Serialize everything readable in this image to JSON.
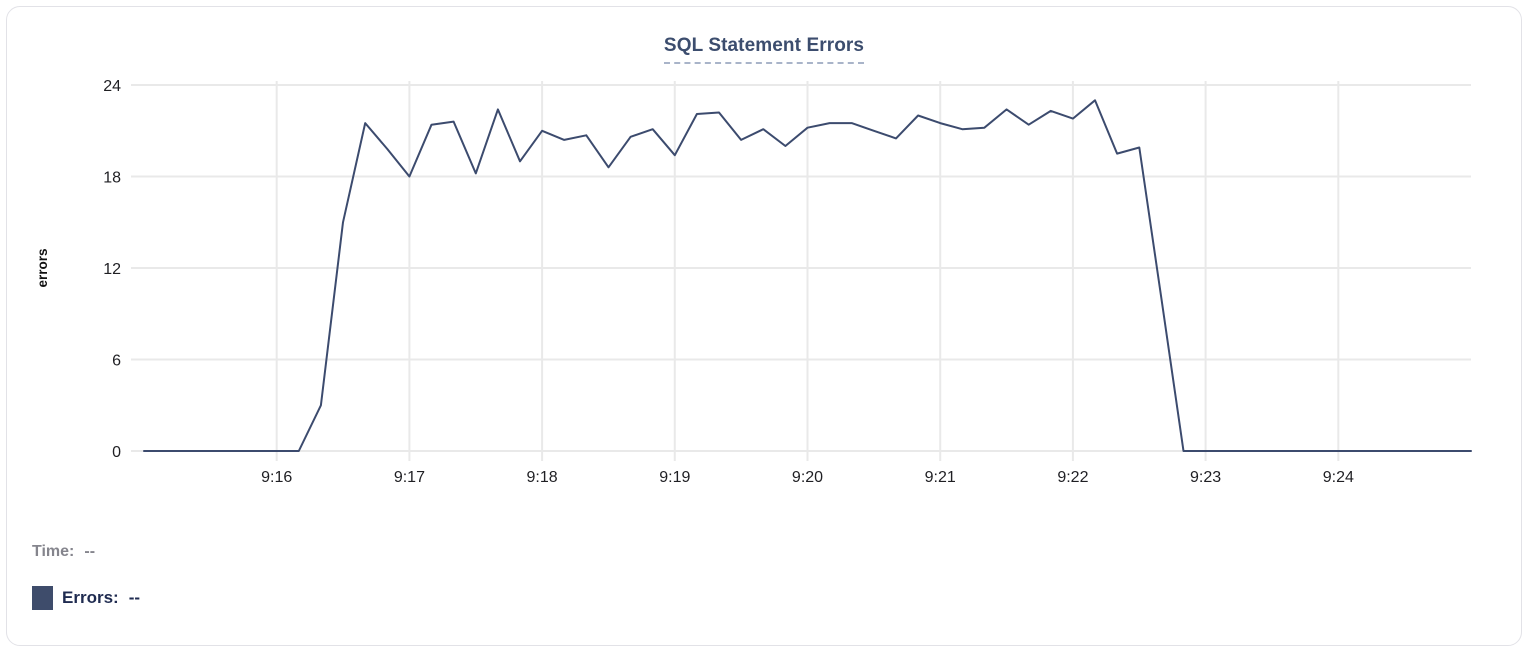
{
  "card": {
    "title": "SQL Statement Errors"
  },
  "tooltip_readout": {
    "time_label": "Time:",
    "time_value": "--",
    "errors_label": "Errors:",
    "errors_value": "--"
  },
  "colors": {
    "line": "#3c4b6e",
    "grid": "#e9e9e9",
    "title": "#3c4d6e",
    "title_underline": "#a9b4c9",
    "axis_text": "#1f1f23",
    "y_axis_label_text": "#111111",
    "time_label": "#85858d",
    "errors_label": "#1f2b50",
    "swatch": "#3e4c6b",
    "card_border": "#e2e2e7"
  },
  "chart_data": {
    "type": "line",
    "title": "SQL Statement Errors",
    "xlabel": "",
    "ylabel": "errors",
    "ylim": [
      0,
      24
    ],
    "y_ticks": [
      0,
      6,
      12,
      18,
      24
    ],
    "x_tick_labels": [
      "9:16",
      "9:17",
      "9:18",
      "9:19",
      "9:20",
      "9:21",
      "9:22",
      "9:23",
      "9:24"
    ],
    "x_domain": [
      "9:15:00",
      "9:25:00"
    ],
    "interval_seconds": 10,
    "grid": true,
    "legend_position": "bottom-left",
    "series": [
      {
        "name": "Errors",
        "color": "#3c4b6e",
        "points": [
          [
            "9:15:00",
            0
          ],
          [
            "9:15:10",
            0
          ],
          [
            "9:15:20",
            0
          ],
          [
            "9:15:30",
            0
          ],
          [
            "9:15:40",
            0
          ],
          [
            "9:15:50",
            0
          ],
          [
            "9:16:00",
            0
          ],
          [
            "9:16:10",
            0
          ],
          [
            "9:16:20",
            3
          ],
          [
            "9:16:30",
            15
          ],
          [
            "9:16:40",
            21.5
          ],
          [
            "9:16:50",
            19.8
          ],
          [
            "9:17:00",
            18
          ],
          [
            "9:17:10",
            21.4
          ],
          [
            "9:17:20",
            21.6
          ],
          [
            "9:17:30",
            18.2
          ],
          [
            "9:17:40",
            22.4
          ],
          [
            "9:17:50",
            19
          ],
          [
            "9:18:00",
            21
          ],
          [
            "9:18:10",
            20.4
          ],
          [
            "9:18:20",
            20.7
          ],
          [
            "9:18:30",
            18.6
          ],
          [
            "9:18:40",
            20.6
          ],
          [
            "9:18:50",
            21.1
          ],
          [
            "9:19:00",
            19.4
          ],
          [
            "9:19:10",
            22.1
          ],
          [
            "9:19:20",
            22.2
          ],
          [
            "9:19:30",
            20.4
          ],
          [
            "9:19:40",
            21.1
          ],
          [
            "9:19:50",
            20
          ],
          [
            "9:20:00",
            21.2
          ],
          [
            "9:20:10",
            21.5
          ],
          [
            "9:20:20",
            21.5
          ],
          [
            "9:20:30",
            21
          ],
          [
            "9:20:40",
            20.5
          ],
          [
            "9:20:50",
            22
          ],
          [
            "9:21:00",
            21.5
          ],
          [
            "9:21:10",
            21.1
          ],
          [
            "9:21:20",
            21.2
          ],
          [
            "9:21:30",
            22.4
          ],
          [
            "9:21:40",
            21.4
          ],
          [
            "9:21:50",
            22.3
          ],
          [
            "9:22:00",
            21.8
          ],
          [
            "9:22:10",
            23
          ],
          [
            "9:22:20",
            19.5
          ],
          [
            "9:22:30",
            19.9
          ],
          [
            "9:22:40",
            10
          ],
          [
            "9:22:50",
            0
          ],
          [
            "9:23:00",
            0
          ],
          [
            "9:23:10",
            0
          ],
          [
            "9:23:20",
            0
          ],
          [
            "9:23:30",
            0
          ],
          [
            "9:23:40",
            0
          ],
          [
            "9:23:50",
            0
          ],
          [
            "9:24:00",
            0
          ],
          [
            "9:24:10",
            0
          ],
          [
            "9:24:20",
            0
          ],
          [
            "9:24:30",
            0
          ],
          [
            "9:24:40",
            0
          ],
          [
            "9:24:50",
            0
          ],
          [
            "9:25:00",
            0
          ]
        ]
      }
    ]
  }
}
